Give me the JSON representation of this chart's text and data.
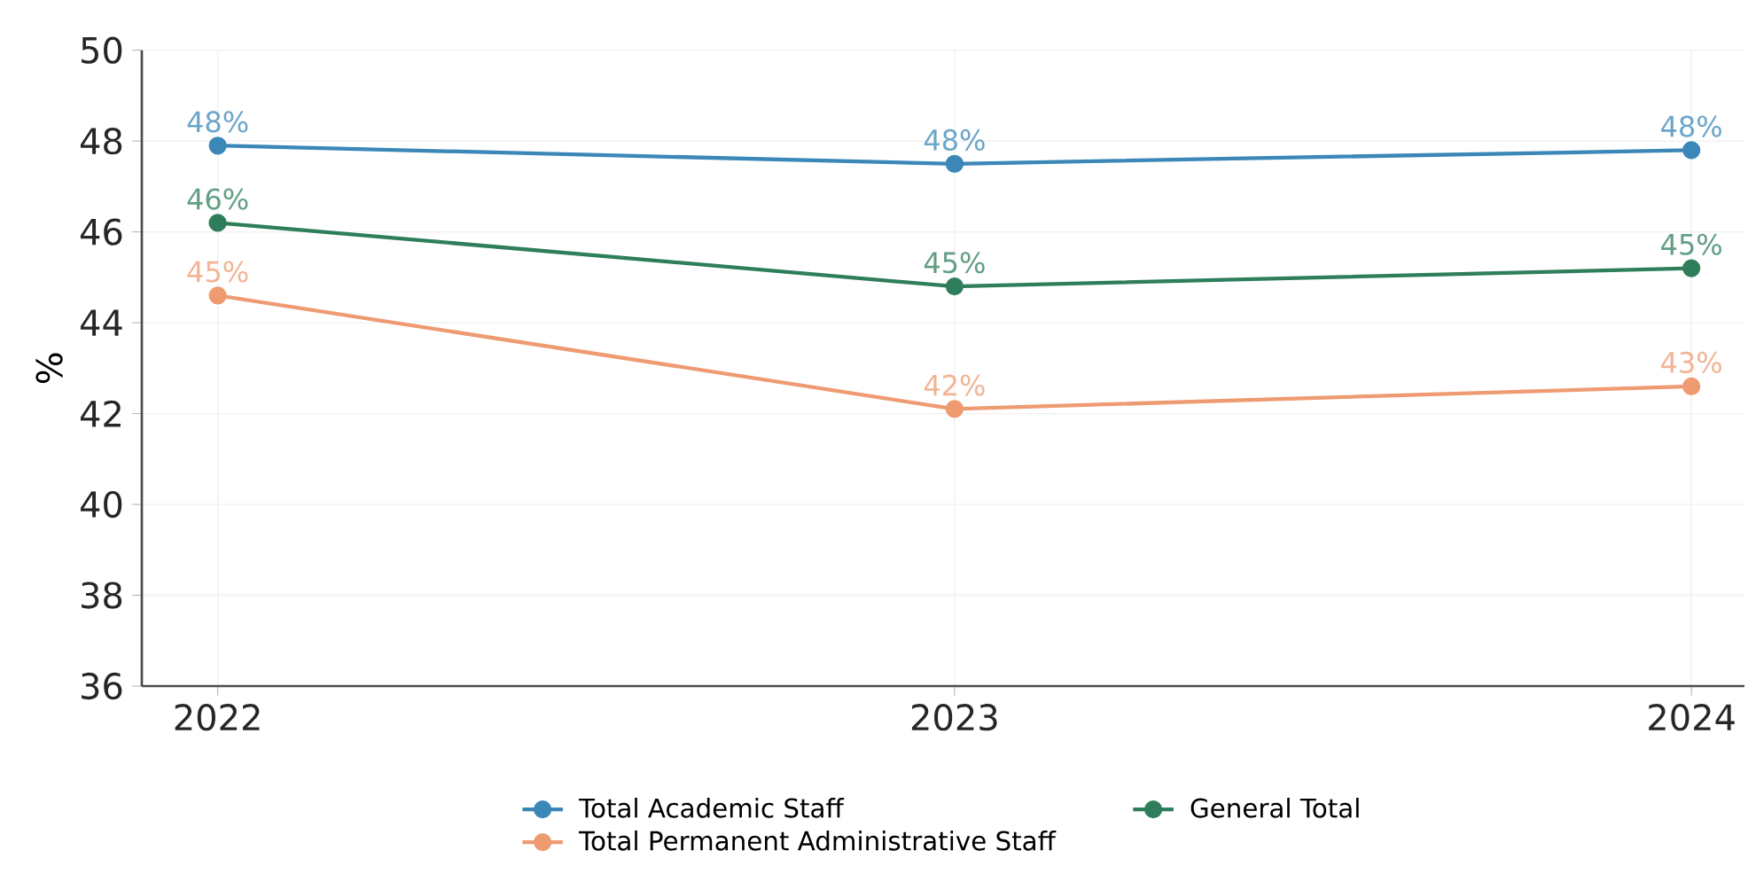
{
  "chart_data": {
    "type": "line",
    "categories": [
      "2022",
      "2023",
      "2024"
    ],
    "ylabel": "%",
    "ylim": [
      36,
      50
    ],
    "yticks": [
      36,
      38,
      40,
      42,
      44,
      46,
      48,
      50
    ],
    "grid": true,
    "legend": "bottom",
    "marker": "circle",
    "line_style": "solid",
    "series": [
      {
        "name": "Total Academic Staff",
        "color": "#3a87b8",
        "values": [
          47.9,
          47.5,
          47.8
        ],
        "value_labels": [
          "48%",
          "48%",
          "48%"
        ]
      },
      {
        "name": "General Total",
        "color": "#2e7d5b",
        "values": [
          46.2,
          44.8,
          45.2
        ],
        "value_labels": [
          "46%",
          "45%",
          "45%"
        ]
      },
      {
        "name": "Total Permanent Administrative Staff",
        "color": "#ee9b72",
        "values": [
          44.6,
          42.1,
          42.6
        ],
        "value_labels": [
          "45%",
          "42%",
          "43%"
        ]
      }
    ]
  }
}
